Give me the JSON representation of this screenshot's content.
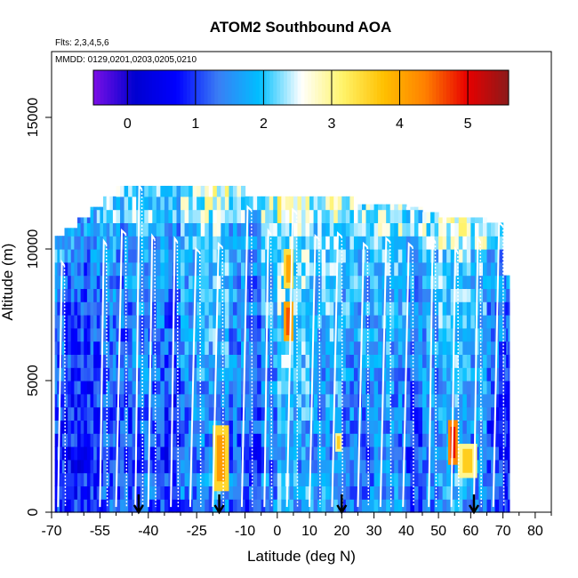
{
  "chart_data": {
    "type": "heatmap",
    "title": "ATOM2 Southbound AOA",
    "flights_label": "Flts: 2,3,4,5,6",
    "mmdd_label": "MMDD: 0129,0201,0203,0205,0210",
    "xlabel": "Latitude (deg N)",
    "ylabel": "Altitude (m)",
    "xlim": [
      -70,
      85
    ],
    "ylim": [
      0,
      17500
    ],
    "x_ticks": [
      -70,
      -55,
      -40,
      -25,
      -10,
      0,
      10,
      20,
      30,
      40,
      50,
      60,
      70,
      80
    ],
    "x_tick_labels": [
      "-70",
      "-55",
      "-40",
      "-25",
      "-10",
      "0",
      "10",
      "20",
      "30",
      "40",
      "50",
      "60",
      "70",
      "80"
    ],
    "y_ticks": [
      0,
      5000,
      10000,
      15000
    ],
    "y_tick_labels": [
      "0",
      "5000",
      "10000",
      "15000"
    ],
    "colorbar": {
      "range": [
        -0.5,
        5.6
      ],
      "ticks": [
        0,
        1,
        2,
        3,
        4,
        5
      ],
      "tick_labels": [
        "0",
        "1",
        "2",
        "3",
        "4",
        "5"
      ]
    },
    "arrow_latitudes": [
      -43,
      -18,
      20,
      61
    ],
    "columns": [
      {
        "lat0": -69,
        "lat1": -66,
        "top": 10500,
        "base": 0.8
      },
      {
        "lat0": -66,
        "lat1": -62,
        "top": 10800,
        "base": 0.6
      },
      {
        "lat0": -62,
        "lat1": -58,
        "top": 11200,
        "base": 0.5
      },
      {
        "lat0": -58,
        "lat1": -54,
        "top": 11600,
        "base": 0.7
      },
      {
        "lat0": -54,
        "lat1": -50,
        "top": 12000,
        "base": 0.9
      },
      {
        "lat0": -50,
        "lat1": -45,
        "top": 12400,
        "base": 0.8
      },
      {
        "lat0": -45,
        "lat1": -40,
        "top": 12400,
        "base": 1.0
      },
      {
        "lat0": -40,
        "lat1": -35,
        "top": 12400,
        "base": 0.9
      },
      {
        "lat0": -35,
        "lat1": -30,
        "top": 12400,
        "base": 0.7
      },
      {
        "lat0": -30,
        "lat1": -25,
        "top": 12400,
        "base": 1.1
      },
      {
        "lat0": -25,
        "lat1": -20,
        "top": 12400,
        "base": 1.3
      },
      {
        "lat0": -20,
        "lat1": -15,
        "top": 12400,
        "base": 1.4
      },
      {
        "lat0": -15,
        "lat1": -10,
        "top": 12400,
        "base": 1.0
      },
      {
        "lat0": -10,
        "lat1": -5,
        "top": 12000,
        "base": 0.8
      },
      {
        "lat0": -5,
        "lat1": 0,
        "top": 12000,
        "base": 1.2
      },
      {
        "lat0": 0,
        "lat1": 5,
        "top": 12000,
        "base": 1.6
      },
      {
        "lat0": 5,
        "lat1": 10,
        "top": 12000,
        "base": 1.5
      },
      {
        "lat0": 10,
        "lat1": 15,
        "top": 12000,
        "base": 1.3
      },
      {
        "lat0": 15,
        "lat1": 20,
        "top": 12000,
        "base": 1.4
      },
      {
        "lat0": 20,
        "lat1": 25,
        "top": 12000,
        "base": 1.2
      },
      {
        "lat0": 25,
        "lat1": 30,
        "top": 11700,
        "base": 1.1
      },
      {
        "lat0": 30,
        "lat1": 35,
        "top": 11700,
        "base": 1.3
      },
      {
        "lat0": 35,
        "lat1": 40,
        "top": 11700,
        "base": 1.2
      },
      {
        "lat0": 40,
        "lat1": 45,
        "top": 11600,
        "base": 0.9
      },
      {
        "lat0": 45,
        "lat1": 50,
        "top": 11400,
        "base": 1.2
      },
      {
        "lat0": 50,
        "lat1": 55,
        "top": 11200,
        "base": 1.4
      },
      {
        "lat0": 55,
        "lat1": 60,
        "top": 11200,
        "base": 1.5
      },
      {
        "lat0": 60,
        "lat1": 65,
        "top": 11200,
        "base": 1.3
      },
      {
        "lat0": 65,
        "lat1": 70,
        "top": 11000,
        "base": 0.9
      },
      {
        "lat0": 70,
        "lat1": 72,
        "top": 9000,
        "base": 0.6
      }
    ],
    "hotspots": [
      {
        "lat0": -20,
        "lat1": -15,
        "alt0": 800,
        "alt1": 3300,
        "value": 4.1
      },
      {
        "lat0": 2,
        "lat1": 5,
        "alt0": 8500,
        "alt1": 10000,
        "value": 4.0
      },
      {
        "lat0": 2,
        "lat1": 5,
        "alt0": 6500,
        "alt1": 8000,
        "value": 4.6
      },
      {
        "lat0": 53,
        "lat1": 56,
        "alt0": 1800,
        "alt1": 3500,
        "value": 4.9
      },
      {
        "lat0": 56,
        "lat1": 62,
        "alt0": 1300,
        "alt1": 2600,
        "value": 3.6
      },
      {
        "lat0": 18,
        "lat1": 20,
        "alt0": 2300,
        "alt1": 3000,
        "value": 3.6
      }
    ],
    "flight_profiles": [
      {
        "lat0": -68,
        "lat1": -66,
        "alt_top": 9500
      },
      {
        "lat0": -55,
        "lat1": -53,
        "alt_top": 10300
      },
      {
        "lat0": -50,
        "lat1": -47,
        "alt_top": 10700
      },
      {
        "lat0": -44,
        "lat1": -42,
        "alt_top": 12400
      },
      {
        "lat0": -40,
        "lat1": -38,
        "alt_top": 10500
      },
      {
        "lat0": -33,
        "lat1": -31,
        "alt_top": 10400
      },
      {
        "lat0": -27,
        "lat1": -24,
        "alt_top": 10000
      },
      {
        "lat0": -20,
        "lat1": -17,
        "alt_top": 10200
      },
      {
        "lat0": -11,
        "lat1": -8,
        "alt_top": 11600
      },
      {
        "lat0": -4,
        "lat1": -2,
        "alt_top": 10700
      },
      {
        "lat0": 3,
        "lat1": 6,
        "alt_top": 11500
      },
      {
        "lat0": 10,
        "lat1": 13,
        "alt_top": 10500
      },
      {
        "lat0": 17,
        "lat1": 20,
        "alt_top": 10600
      },
      {
        "lat0": 25,
        "lat1": 28,
        "alt_top": 10200
      },
      {
        "lat0": 32,
        "lat1": 35,
        "alt_top": 10400
      },
      {
        "lat0": 39,
        "lat1": 42,
        "alt_top": 10200
      },
      {
        "lat0": 47,
        "lat1": 49,
        "alt_top": 10400
      },
      {
        "lat0": 54,
        "lat1": 56,
        "alt_top": 10000
      },
      {
        "lat0": 61,
        "lat1": 63,
        "alt_top": 10400
      },
      {
        "lat0": 67,
        "lat1": 70,
        "alt_top": 11000
      }
    ]
  },
  "colors": {
    "scale": [
      "#7b0fe6",
      "#0000d0",
      "#0000ff",
      "#3a7df5",
      "#00bfff",
      "#ffffff",
      "#fff36a",
      "#ffc000",
      "#ff7f00",
      "#e80000",
      "#8b1a1a"
    ],
    "profile_line": "#ffffff",
    "arrow": "#000000"
  }
}
